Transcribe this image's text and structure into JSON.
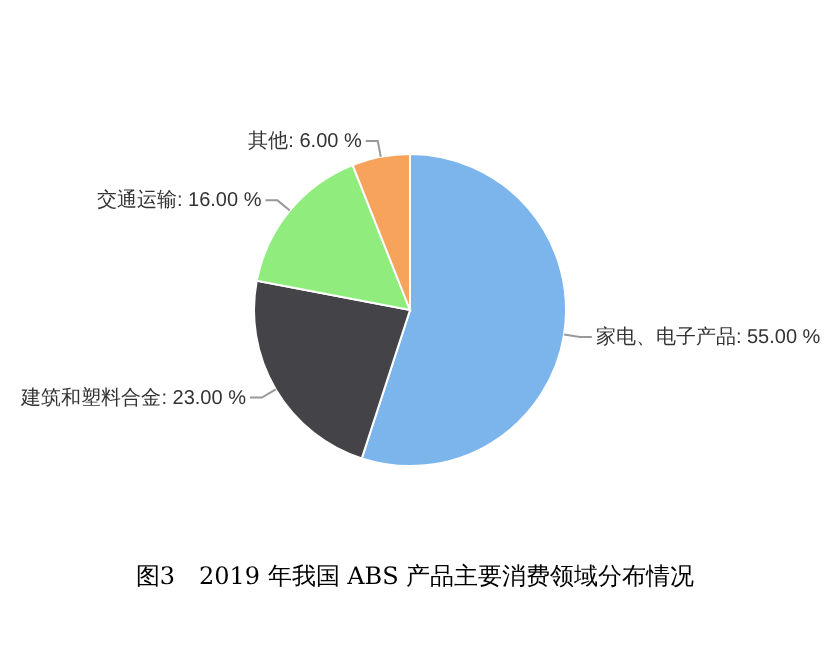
{
  "chart_data": {
    "type": "pie",
    "title": "图3　2019 年我国 ABS 产品主要消费领域分布情况",
    "categories": [
      "家电、电子产品",
      "建筑和塑料合金",
      "交通运输",
      "其他"
    ],
    "values": [
      55,
      23,
      16,
      6
    ],
    "colors": [
      "#7cb5ec",
      "#434348",
      "#90ed7d",
      "#f7a35c"
    ],
    "value_labels": [
      "55.00 %",
      "23.00 %",
      "16.00 %",
      "6.00 %"
    ],
    "legend": false
  }
}
